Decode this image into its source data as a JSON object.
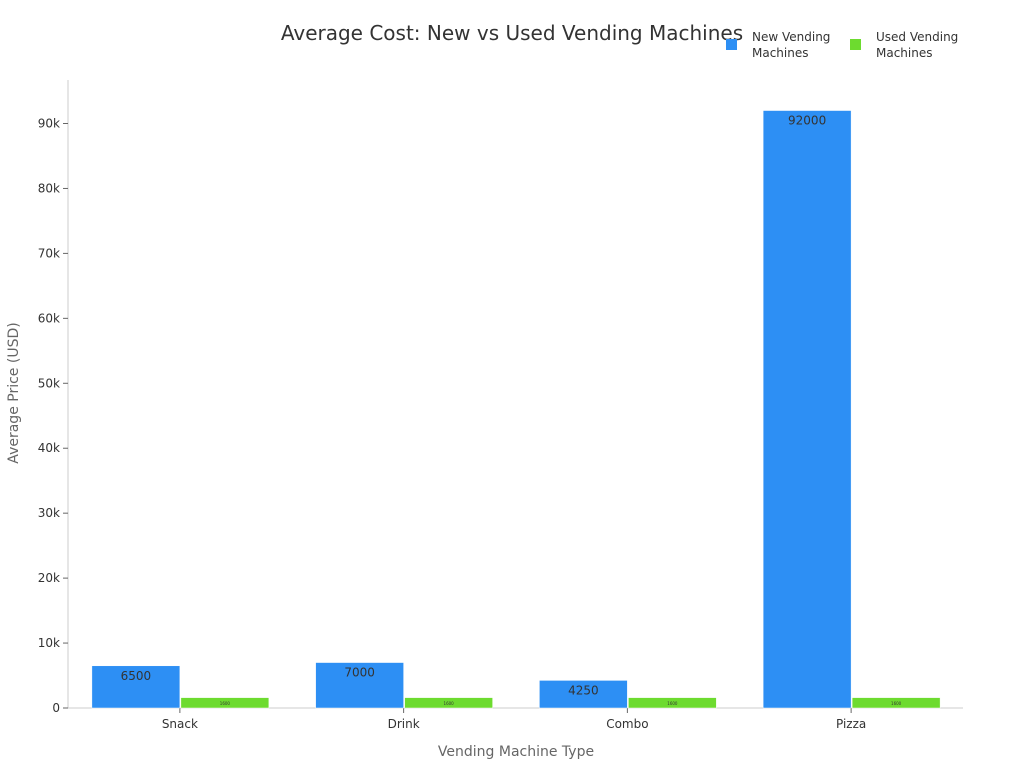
{
  "chart_data": {
    "type": "bar",
    "title": "Average Cost: New vs Used Vending Machines",
    "xlabel": "Vending Machine Type",
    "ylabel": "Average Price (USD)",
    "categories": [
      "Snack",
      "Drink",
      "Combo",
      "Pizza"
    ],
    "series": [
      {
        "name": "New Vending Machines",
        "color": "#2d8ff4",
        "values": [
          6500,
          7000,
          4250,
          92000
        ]
      },
      {
        "name": "Used Vending Machines",
        "color": "#6ddb2f",
        "values": [
          1600,
          1600,
          1600,
          1600
        ]
      }
    ],
    "ylim": [
      0,
      96700
    ],
    "yticks": [
      0,
      10000,
      20000,
      30000,
      40000,
      50000,
      60000,
      70000,
      80000,
      90000
    ],
    "ytick_labels": [
      "0",
      "10k",
      "20k",
      "30k",
      "40k",
      "50k",
      "60k",
      "70k",
      "80k",
      "90k"
    ],
    "legend_position": "top-right",
    "grid": false
  }
}
